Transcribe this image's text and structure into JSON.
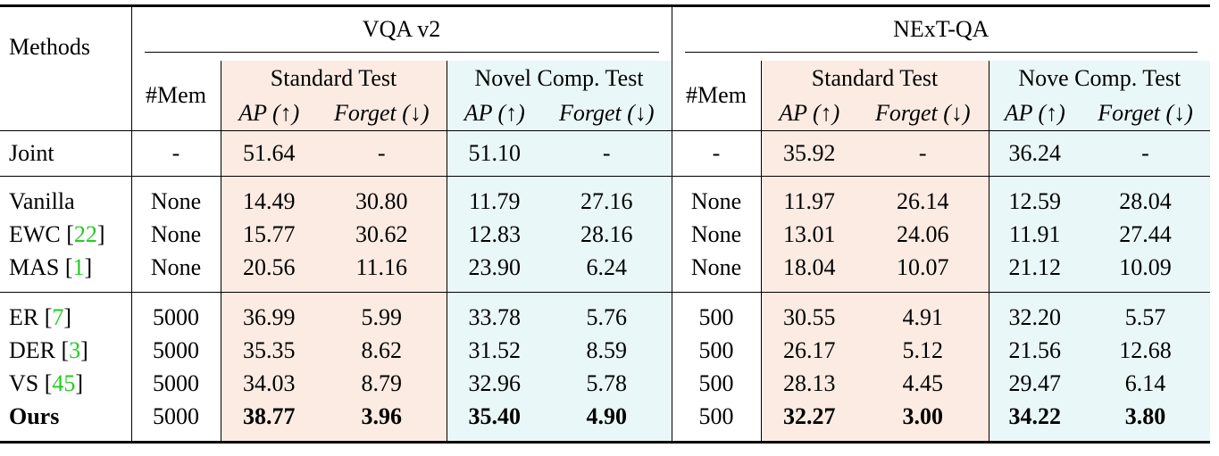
{
  "header": {
    "methods": "Methods",
    "datasets": [
      {
        "name": "VQA v2",
        "mem": "#Mem",
        "tests": [
          {
            "name": "Standard Test",
            "metrics": [
              "AP (↑)",
              "Forget (↓)"
            ]
          },
          {
            "name": "Novel Comp. Test",
            "metrics": [
              "AP (↑)",
              "Forget (↓)"
            ]
          }
        ]
      },
      {
        "name": "NExT-QA",
        "mem": "#Mem",
        "tests": [
          {
            "name": "Standard Test",
            "metrics": [
              "AP (↑)",
              "Forget (↓)"
            ]
          },
          {
            "name": "Nove Comp. Test",
            "metrics": [
              "AP (↑)",
              "Forget (↓)"
            ]
          }
        ]
      }
    ]
  },
  "table": {
    "groups": [
      [
        {
          "method": "Joint",
          "values": [
            "-",
            "51.64",
            "-",
            "51.10",
            "-",
            "-",
            "35.92",
            "-",
            "36.24",
            "-"
          ]
        }
      ],
      [
        {
          "method": "Vanilla",
          "values": [
            "None",
            "14.49",
            "30.80",
            "11.79",
            "27.16",
            "None",
            "11.97",
            "26.14",
            "12.59",
            "28.04"
          ]
        },
        {
          "method": "EWC [",
          "ref": "22",
          "close": "]",
          "values": [
            "None",
            "15.77",
            "30.62",
            "12.83",
            "28.16",
            "None",
            "13.01",
            "24.06",
            "11.91",
            "27.44"
          ]
        },
        {
          "method": "MAS [",
          "ref": "1",
          "close": "]",
          "values": [
            "None",
            "20.56",
            "11.16",
            "23.90",
            "6.24",
            "None",
            "18.04",
            "10.07",
            "21.12",
            "10.09"
          ]
        }
      ],
      [
        {
          "method": "ER [",
          "ref": "7",
          "close": "]",
          "values": [
            "5000",
            "36.99",
            "5.99",
            "33.78",
            "5.76",
            "500",
            "30.55",
            "4.91",
            "32.20",
            "5.57"
          ]
        },
        {
          "method": "DER [",
          "ref": "3",
          "close": "]",
          "values": [
            "5000",
            "35.35",
            "8.62",
            "31.52",
            "8.59",
            "500",
            "26.17",
            "5.12",
            "21.56",
            "12.68"
          ]
        },
        {
          "method": "VS [",
          "ref": "45",
          "close": "]",
          "values": [
            "5000",
            "34.03",
            "8.79",
            "32.96",
            "5.78",
            "500",
            "28.13",
            "4.45",
            "29.47",
            "6.14"
          ]
        },
        {
          "method": "Ours",
          "bold": true,
          "values": [
            "5000",
            "38.77",
            "3.96",
            "35.40",
            "4.90",
            "500",
            "32.27",
            "3.00",
            "34.22",
            "3.80"
          ]
        }
      ]
    ]
  }
}
